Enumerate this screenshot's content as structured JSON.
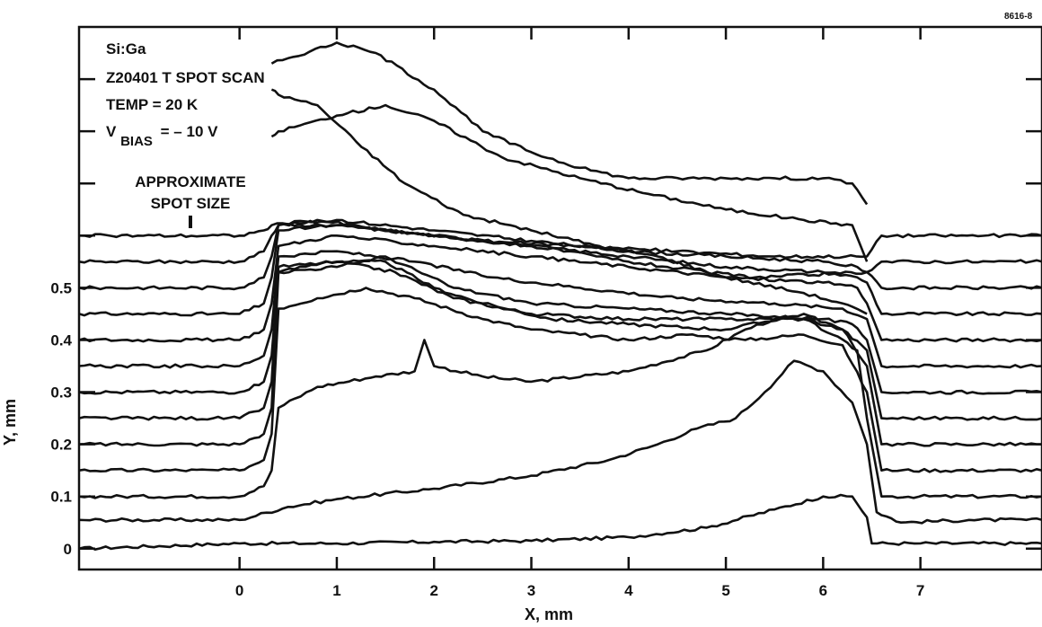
{
  "figure_id": "8616-8",
  "chart_data": {
    "type": "line",
    "xlabel": "X, mm",
    "ylabel": "Y, mm",
    "x_ticks": [
      "0",
      "1",
      "2",
      "3",
      "4",
      "5",
      "6",
      "7"
    ],
    "y_ticks": [
      "0",
      "0.1",
      "0.2",
      "0.3",
      "0.4",
      "0.5"
    ],
    "xlim": [
      -1.65,
      8.25
    ],
    "ylim": [
      -0.04,
      1.0
    ],
    "annotations": {
      "line1": "Si:Ga",
      "line2": "Z20401 T SPOT SCAN",
      "line3": "TEMP = 20 K",
      "vbias_main": "V",
      "vbias_sub": "BIAS",
      "vbias_value": "= – 10 V",
      "spot_line1": "APPROXIMATE",
      "spot_line2": "SPOT SIZE"
    },
    "detector_edges_mm": [
      0.33,
      6.45
    ],
    "series": [
      {
        "y_offset": 0.0,
        "points": [
          [
            -1.65,
            0.0
          ],
          [
            0.0,
            0.01
          ],
          [
            1.0,
            0.01
          ],
          [
            2.0,
            0.013
          ],
          [
            3.0,
            0.015
          ],
          [
            4.0,
            0.022
          ],
          [
            4.8,
            0.04
          ],
          [
            5.5,
            0.075
          ],
          [
            6.0,
            0.1
          ],
          [
            6.3,
            0.1
          ],
          [
            6.45,
            0.06
          ],
          [
            6.5,
            0.01
          ],
          [
            7.0,
            0.01
          ],
          [
            8.25,
            0.01
          ]
        ]
      },
      {
        "y_offset": 0.05,
        "points": [
          [
            -1.65,
            0.055
          ],
          [
            0.0,
            0.055
          ],
          [
            0.5,
            0.08
          ],
          [
            1.0,
            0.095
          ],
          [
            2.0,
            0.115
          ],
          [
            3.0,
            0.14
          ],
          [
            3.8,
            0.17
          ],
          [
            4.3,
            0.2
          ],
          [
            4.7,
            0.23
          ],
          [
            5.1,
            0.25
          ],
          [
            5.4,
            0.3
          ],
          [
            5.7,
            0.36
          ],
          [
            6.0,
            0.34
          ],
          [
            6.3,
            0.28
          ],
          [
            6.45,
            0.2
          ],
          [
            6.55,
            0.07
          ],
          [
            6.8,
            0.05
          ],
          [
            7.5,
            0.055
          ],
          [
            8.25,
            0.055
          ]
        ]
      },
      {
        "y_offset": 0.1,
        "points": [
          [
            -1.65,
            0.1
          ],
          [
            0.0,
            0.1
          ],
          [
            0.25,
            0.12
          ],
          [
            0.33,
            0.15
          ],
          [
            0.4,
            0.27
          ],
          [
            0.8,
            0.31
          ],
          [
            1.4,
            0.33
          ],
          [
            1.8,
            0.34
          ],
          [
            1.9,
            0.4
          ],
          [
            2.0,
            0.35
          ],
          [
            2.5,
            0.33
          ],
          [
            3.0,
            0.32
          ],
          [
            4.0,
            0.34
          ],
          [
            4.8,
            0.38
          ],
          [
            5.2,
            0.42
          ],
          [
            5.5,
            0.44
          ],
          [
            5.8,
            0.44
          ],
          [
            6.1,
            0.41
          ],
          [
            6.35,
            0.38
          ],
          [
            6.45,
            0.25
          ],
          [
            6.6,
            0.1
          ],
          [
            8.25,
            0.1
          ]
        ]
      },
      {
        "y_offset": 0.15,
        "points": [
          [
            -1.65,
            0.15
          ],
          [
            0.0,
            0.15
          ],
          [
            0.25,
            0.17
          ],
          [
            0.33,
            0.22
          ],
          [
            0.4,
            0.46
          ],
          [
            0.8,
            0.48
          ],
          [
            1.3,
            0.5
          ],
          [
            1.8,
            0.48
          ],
          [
            2.5,
            0.44
          ],
          [
            3.0,
            0.42
          ],
          [
            3.5,
            0.41
          ],
          [
            4.0,
            0.4
          ],
          [
            4.6,
            0.41
          ],
          [
            5.2,
            0.4
          ],
          [
            5.8,
            0.41
          ],
          [
            6.2,
            0.39
          ],
          [
            6.45,
            0.3
          ],
          [
            6.6,
            0.15
          ],
          [
            8.25,
            0.15
          ]
        ]
      },
      {
        "y_offset": 0.2,
        "points": [
          [
            -1.65,
            0.2
          ],
          [
            0.0,
            0.2
          ],
          [
            0.25,
            0.22
          ],
          [
            0.33,
            0.27
          ],
          [
            0.4,
            0.53
          ],
          [
            0.9,
            0.55
          ],
          [
            1.5,
            0.55
          ],
          [
            2.0,
            0.5
          ],
          [
            2.5,
            0.47
          ],
          [
            3.2,
            0.44
          ],
          [
            4.0,
            0.43
          ],
          [
            5.0,
            0.42
          ],
          [
            5.8,
            0.45
          ],
          [
            6.2,
            0.42
          ],
          [
            6.45,
            0.35
          ],
          [
            6.6,
            0.2
          ],
          [
            8.25,
            0.2
          ]
        ]
      },
      {
        "y_offset": 0.25,
        "points": [
          [
            -1.65,
            0.25
          ],
          [
            0.0,
            0.25
          ],
          [
            0.25,
            0.27
          ],
          [
            0.33,
            0.32
          ],
          [
            0.4,
            0.54
          ],
          [
            1.0,
            0.55
          ],
          [
            1.6,
            0.53
          ],
          [
            2.2,
            0.48
          ],
          [
            3.0,
            0.45
          ],
          [
            4.0,
            0.44
          ],
          [
            5.0,
            0.44
          ],
          [
            5.8,
            0.44
          ],
          [
            6.2,
            0.42
          ],
          [
            6.45,
            0.38
          ],
          [
            6.6,
            0.25
          ],
          [
            8.25,
            0.25
          ]
        ]
      },
      {
        "y_offset": 0.3,
        "points": [
          [
            -1.65,
            0.3
          ],
          [
            0.0,
            0.3
          ],
          [
            0.25,
            0.32
          ],
          [
            0.33,
            0.37
          ],
          [
            0.4,
            0.53
          ],
          [
            1.0,
            0.54
          ],
          [
            1.5,
            0.56
          ],
          [
            2.2,
            0.5
          ],
          [
            3.0,
            0.47
          ],
          [
            4.0,
            0.46
          ],
          [
            5.0,
            0.45
          ],
          [
            6.0,
            0.44
          ],
          [
            6.3,
            0.43
          ],
          [
            6.45,
            0.4
          ],
          [
            6.6,
            0.3
          ],
          [
            8.25,
            0.3
          ]
        ]
      },
      {
        "y_offset": 0.35,
        "points": [
          [
            -1.65,
            0.35
          ],
          [
            0.0,
            0.35
          ],
          [
            0.25,
            0.37
          ],
          [
            0.33,
            0.42
          ],
          [
            0.4,
            0.56
          ],
          [
            1.0,
            0.57
          ],
          [
            1.8,
            0.55
          ],
          [
            2.6,
            0.52
          ],
          [
            3.5,
            0.5
          ],
          [
            4.5,
            0.48
          ],
          [
            5.5,
            0.47
          ],
          [
            6.2,
            0.46
          ],
          [
            6.45,
            0.44
          ],
          [
            6.6,
            0.35
          ],
          [
            8.25,
            0.35
          ]
        ]
      },
      {
        "y_offset": 0.4,
        "points": [
          [
            -1.65,
            0.4
          ],
          [
            0.0,
            0.4
          ],
          [
            0.25,
            0.42
          ],
          [
            0.33,
            0.47
          ],
          [
            0.4,
            0.58
          ],
          [
            1.0,
            0.6
          ],
          [
            2.0,
            0.58
          ],
          [
            3.0,
            0.56
          ],
          [
            4.0,
            0.54
          ],
          [
            5.0,
            0.52
          ],
          [
            6.0,
            0.51
          ],
          [
            6.35,
            0.5
          ],
          [
            6.45,
            0.47
          ],
          [
            6.6,
            0.4
          ],
          [
            8.25,
            0.4
          ]
        ]
      },
      {
        "y_offset": 0.45,
        "points": [
          [
            -1.65,
            0.45
          ],
          [
            0.0,
            0.45
          ],
          [
            0.25,
            0.47
          ],
          [
            0.33,
            0.52
          ],
          [
            0.4,
            0.61
          ],
          [
            1.0,
            0.62
          ],
          [
            2.0,
            0.6
          ],
          [
            3.0,
            0.58
          ],
          [
            4.0,
            0.56
          ],
          [
            5.0,
            0.54
          ],
          [
            6.0,
            0.53
          ],
          [
            6.35,
            0.52
          ],
          [
            6.45,
            0.51
          ],
          [
            6.6,
            0.45
          ],
          [
            8.25,
            0.45
          ]
        ]
      },
      {
        "y_offset": 0.5,
        "points": [
          [
            -1.65,
            0.5
          ],
          [
            0.0,
            0.5
          ],
          [
            0.25,
            0.52
          ],
          [
            0.33,
            0.56
          ],
          [
            0.4,
            0.62
          ],
          [
            1.0,
            0.63
          ],
          [
            2.0,
            0.61
          ],
          [
            3.0,
            0.59
          ],
          [
            4.0,
            0.57
          ],
          [
            5.0,
            0.56
          ],
          [
            6.0,
            0.55
          ],
          [
            6.35,
            0.54
          ],
          [
            6.45,
            0.53
          ],
          [
            6.6,
            0.5
          ],
          [
            8.25,
            0.5
          ]
        ]
      },
      {
        "y_offset": 0.55,
        "points": [
          [
            -1.65,
            0.55
          ],
          [
            0.0,
            0.55
          ],
          [
            0.25,
            0.57
          ],
          [
            0.33,
            0.6
          ],
          [
            0.4,
            0.62
          ],
          [
            1.0,
            0.62
          ],
          [
            2.0,
            0.6
          ],
          [
            3.0,
            0.58
          ],
          [
            4.0,
            0.55
          ],
          [
            4.8,
            0.53
          ],
          [
            5.3,
            0.52
          ],
          [
            6.45,
            0.53
          ],
          [
            6.6,
            0.55
          ],
          [
            8.25,
            0.55
          ]
        ]
      },
      {
        "y_offset": 0.6,
        "points": [
          [
            -1.65,
            0.6
          ],
          [
            0.0,
            0.6
          ],
          [
            0.25,
            0.61
          ],
          [
            0.33,
            0.62
          ],
          [
            0.8,
            0.63
          ],
          [
            1.5,
            0.61
          ],
          [
            2.5,
            0.59
          ],
          [
            3.5,
            0.58
          ],
          [
            4.5,
            0.57
          ],
          [
            5.5,
            0.56
          ],
          [
            6.45,
            0.56
          ],
          [
            6.6,
            0.6
          ],
          [
            8.25,
            0.6
          ]
        ]
      },
      {
        "y_offset": 0.65,
        "points": [
          [
            0.33,
            0.79
          ],
          [
            0.4,
            0.8
          ],
          [
            1.0,
            0.83
          ],
          [
            1.5,
            0.85
          ],
          [
            2.0,
            0.82
          ],
          [
            2.7,
            0.75
          ],
          [
            3.5,
            0.71
          ],
          [
            4.2,
            0.68
          ],
          [
            5.0,
            0.65
          ],
          [
            5.8,
            0.63
          ],
          [
            6.3,
            0.62
          ],
          [
            6.45,
            0.55
          ]
        ]
      },
      {
        "y_offset": 0.7,
        "points": [
          [
            0.33,
            0.88
          ],
          [
            0.4,
            0.87
          ],
          [
            0.8,
            0.85
          ],
          [
            1.2,
            0.78
          ],
          [
            1.7,
            0.7
          ],
          [
            2.3,
            0.64
          ],
          [
            3.0,
            0.61
          ],
          [
            3.7,
            0.58
          ],
          [
            4.3,
            0.56
          ],
          [
            5.0,
            0.52
          ],
          [
            5.8,
            0.49
          ],
          [
            6.2,
            0.47
          ],
          [
            6.45,
            0.45
          ]
        ]
      },
      {
        "y_offset": 0.75,
        "points": [
          [
            0.33,
            0.93
          ],
          [
            0.5,
            0.94
          ],
          [
            1.0,
            0.97
          ],
          [
            1.4,
            0.95
          ],
          [
            2.0,
            0.88
          ],
          [
            2.5,
            0.8
          ],
          [
            3.0,
            0.76
          ],
          [
            3.5,
            0.73
          ],
          [
            4.0,
            0.71
          ],
          [
            5.0,
            0.71
          ],
          [
            5.5,
            0.71
          ],
          [
            6.0,
            0.71
          ],
          [
            6.3,
            0.7
          ],
          [
            6.45,
            0.66
          ]
        ]
      }
    ]
  }
}
